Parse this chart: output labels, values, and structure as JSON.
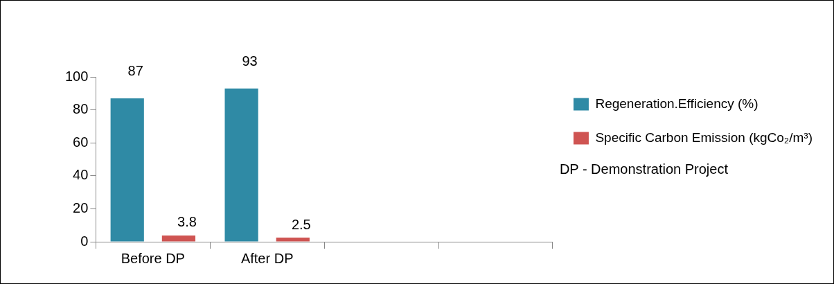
{
  "chart_data": {
    "type": "bar",
    "categories": [
      "Before DP",
      "After DP",
      null,
      null
    ],
    "series": [
      {
        "name": "Regeneration.Efficiency (%)",
        "color": "#2f8aa5",
        "values": [
          87,
          93,
          null,
          null
        ]
      },
      {
        "name": "Specific Carbon Emission (kgCo₂/m³)",
        "color": "#cf5452",
        "values": [
          3.8,
          2.5,
          null,
          null
        ]
      }
    ],
    "ylim": [
      0,
      100
    ],
    "yticks": [
      0,
      20,
      40,
      60,
      80,
      100
    ],
    "grid": false,
    "legend": "right",
    "data_labels": true,
    "annotations": [
      "DP - Demonstration Project"
    ]
  }
}
